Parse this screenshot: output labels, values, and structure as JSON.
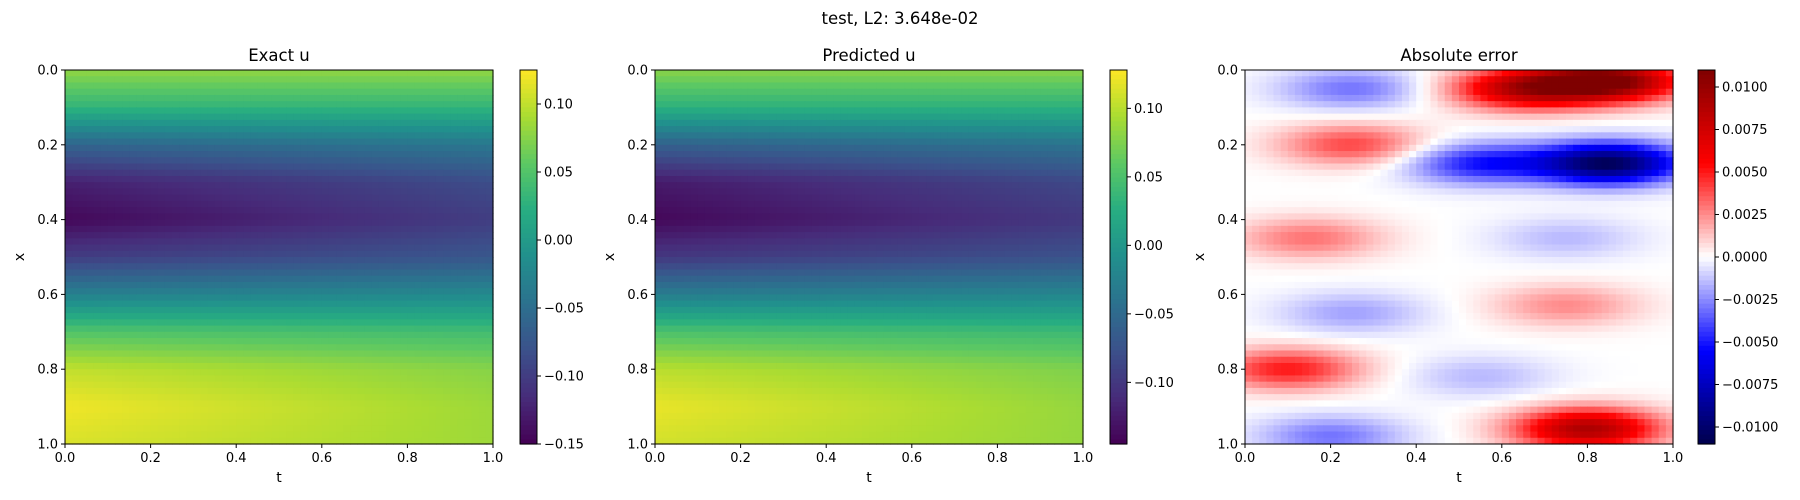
{
  "figure": {
    "suptitle": "test, L2: 3.648e-02"
  },
  "chart_data": [
    {
      "type": "heatmap",
      "title": "Exact u",
      "xlabel": "t",
      "ylabel": "x",
      "xlim": [
        0,
        1
      ],
      "ylim": [
        1,
        0
      ],
      "xticks": [
        "0.0",
        "0.2",
        "0.4",
        "0.6",
        "0.8",
        "1.0"
      ],
      "yticks": [
        "0.0",
        "0.2",
        "0.4",
        "0.6",
        "0.8",
        "1.0"
      ],
      "colormap": "viridis",
      "clim": [
        -0.15,
        0.125
      ],
      "colorbar_ticks": [
        "0.10",
        "0.05",
        "0.00",
        "−0.05",
        "−0.10",
        "−0.15"
      ],
      "colorbar_values": [
        0.1,
        0.05,
        0.0,
        -0.05,
        -0.1,
        -0.15
      ],
      "profile": {
        "x": [
          0.0,
          0.1,
          0.2,
          0.3,
          0.4,
          0.5,
          0.6,
          0.7,
          0.8,
          0.9,
          1.0
        ],
        "u_at_t0": [
          0.08,
          0.03,
          -0.06,
          -0.125,
          -0.145,
          -0.1,
          -0.03,
          0.05,
          0.1,
          0.12,
          0.11
        ],
        "u_at_t1": [
          0.08,
          0.03,
          -0.04,
          -0.085,
          -0.1,
          -0.075,
          -0.02,
          0.04,
          0.075,
          0.085,
          0.085
        ]
      }
    },
    {
      "type": "heatmap",
      "title": "Predicted u",
      "xlabel": "t",
      "ylabel": "x",
      "xlim": [
        0,
        1
      ],
      "ylim": [
        1,
        0
      ],
      "xticks": [
        "0.0",
        "0.2",
        "0.4",
        "0.6",
        "0.8",
        "1.0"
      ],
      "yticks": [
        "0.0",
        "0.2",
        "0.4",
        "0.6",
        "0.8",
        "1.0"
      ],
      "colormap": "viridis",
      "clim": [
        -0.145,
        0.128
      ],
      "colorbar_ticks": [
        "0.10",
        "0.05",
        "0.00",
        "−0.05",
        "−0.10"
      ],
      "colorbar_values": [
        0.1,
        0.05,
        0.0,
        -0.05,
        -0.1
      ],
      "profile": {
        "x": [
          0.0,
          0.1,
          0.2,
          0.3,
          0.4,
          0.5,
          0.6,
          0.7,
          0.8,
          0.9,
          1.0
        ],
        "u_at_t0": [
          0.08,
          0.03,
          -0.06,
          -0.125,
          -0.14,
          -0.1,
          -0.03,
          0.05,
          0.1,
          0.12,
          0.11
        ],
        "u_at_t1": [
          0.08,
          0.03,
          -0.04,
          -0.085,
          -0.1,
          -0.075,
          -0.02,
          0.04,
          0.075,
          0.085,
          0.085
        ]
      }
    },
    {
      "type": "heatmap",
      "title": "Absolute error",
      "xlabel": "t",
      "ylabel": "x",
      "xlim": [
        0,
        1
      ],
      "ylim": [
        1,
        0
      ],
      "xticks": [
        "0.0",
        "0.2",
        "0.4",
        "0.6",
        "0.8",
        "1.0"
      ],
      "yticks": [
        "0.0",
        "0.2",
        "0.4",
        "0.6",
        "0.8",
        "1.0"
      ],
      "colormap": "seismic",
      "clim": [
        -0.011,
        0.011
      ],
      "colorbar_ticks": [
        "0.0100",
        "0.0075",
        "0.0050",
        "0.0025",
        "0.0000",
        "−0.0025",
        "−0.0050",
        "−0.0075",
        "−0.0100"
      ],
      "colorbar_values": [
        0.01,
        0.0075,
        0.005,
        0.0025,
        0.0,
        -0.0025,
        -0.005,
        -0.0075,
        -0.01
      ],
      "error_features": [
        {
          "t": 0.85,
          "x": 0.03,
          "value": 0.011
        },
        {
          "t": 0.65,
          "x": 0.05,
          "value": 0.008
        },
        {
          "t": 0.25,
          "x": 0.05,
          "value": -0.003
        },
        {
          "t": 0.25,
          "x": 0.2,
          "value": 0.004
        },
        {
          "t": 0.85,
          "x": 0.25,
          "value": -0.0105
        },
        {
          "t": 0.55,
          "x": 0.25,
          "value": -0.005
        },
        {
          "t": 0.15,
          "x": 0.45,
          "value": 0.003
        },
        {
          "t": 0.75,
          "x": 0.45,
          "value": -0.0015
        },
        {
          "t": 0.25,
          "x": 0.65,
          "value": -0.002
        },
        {
          "t": 0.75,
          "x": 0.63,
          "value": 0.0025
        },
        {
          "t": 0.1,
          "x": 0.8,
          "value": 0.005
        },
        {
          "t": 0.55,
          "x": 0.82,
          "value": -0.0015
        },
        {
          "t": 0.2,
          "x": 0.98,
          "value": -0.003
        },
        {
          "t": 0.8,
          "x": 0.96,
          "value": 0.009
        }
      ]
    }
  ]
}
